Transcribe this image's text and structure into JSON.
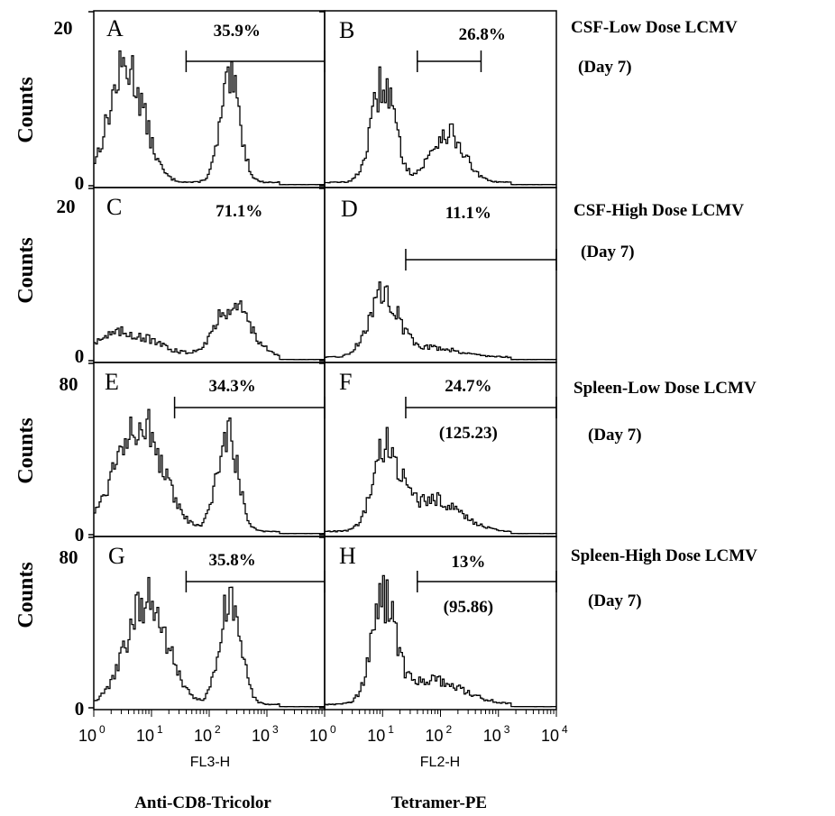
{
  "chart_data": {
    "type": "line",
    "figure": "flow-cytometry-histograms",
    "axis_scale": "log",
    "x_ticks_exponent": [
      "0",
      "1",
      "2",
      "3",
      "4"
    ],
    "x_ticks_base": "10",
    "columns": [
      {
        "axis_label": "FL3-H",
        "bottom_label": "Anti-CD8-Tricolor"
      },
      {
        "axis_label": "FL2-H",
        "bottom_label": "Tetramer-PE"
      }
    ],
    "rows": [
      {
        "y_max": "20",
        "y_min": "0",
        "y_label": "Counts",
        "condition": "CSF-Low Dose LCMV",
        "day": "(Day  7)"
      },
      {
        "y_max": "20",
        "y_min": "0",
        "y_label": "Counts",
        "condition": "CSF-High Dose LCMV",
        "day": "(Day  7)"
      },
      {
        "y_max": "80",
        "y_min": "0",
        "y_label": "Counts",
        "condition": "Spleen-Low Dose LCMV",
        "day": "(Day  7)"
      },
      {
        "y_max": "80",
        "y_min": "0",
        "y_label": "Counts",
        "condition": "Spleen-High Dose LCMV",
        "day": "(Day  7)"
      }
    ],
    "panels": [
      {
        "letter": "A",
        "row": 0,
        "col": 0,
        "ymax": 20,
        "percent": "35.9%",
        "gate": [
          1.6,
          4.0
        ],
        "mfi": "",
        "peaks": [
          [
            0.55,
            0.3,
            14
          ],
          [
            2.35,
            0.17,
            12
          ]
        ]
      },
      {
        "letter": "B",
        "row": 0,
        "col": 1,
        "ymax": 20,
        "percent": "26.8%",
        "gate": [
          1.6,
          2.7
        ],
        "mfi": "",
        "peaks": [
          [
            1.0,
            0.2,
            12
          ],
          [
            2.1,
            0.28,
            6
          ]
        ]
      },
      {
        "letter": "C",
        "row": 1,
        "col": 0,
        "ymax": 20,
        "percent": "71.1%",
        "gate": null,
        "mfi": "",
        "peaks": [
          [
            0.5,
            0.55,
            3
          ],
          [
            2.4,
            0.3,
            6.5
          ]
        ]
      },
      {
        "letter": "D",
        "row": 1,
        "col": 1,
        "ymax": 20,
        "percent": "11.1%",
        "gate": [
          1.4,
          4.0
        ],
        "mfi": "",
        "peaks": [
          [
            1.0,
            0.25,
            7.5
          ],
          [
            1.8,
            0.5,
            1.2
          ]
        ]
      },
      {
        "letter": "E",
        "row": 2,
        "col": 0,
        "ymax": 80,
        "percent": "34.3%",
        "gate": [
          1.4,
          4.0
        ],
        "mfi": "",
        "peaks": [
          [
            0.75,
            0.4,
            55
          ],
          [
            2.3,
            0.18,
            48
          ]
        ]
      },
      {
        "letter": "F",
        "row": 2,
        "col": 1,
        "ymax": 80,
        "percent": "24.7%",
        "gate": [
          1.4,
          4.0
        ],
        "mfi": "(125.23)",
        "peaks": [
          [
            1.05,
            0.22,
            40
          ],
          [
            1.85,
            0.45,
            16
          ]
        ]
      },
      {
        "letter": "G",
        "row": 3,
        "col": 0,
        "ymax": 80,
        "percent": "35.8%",
        "gate": [
          1.6,
          4.0
        ],
        "mfi": "",
        "peaks": [
          [
            0.9,
            0.35,
            52
          ],
          [
            2.35,
            0.18,
            52
          ]
        ]
      },
      {
        "letter": "H",
        "row": 3,
        "col": 1,
        "ymax": 80,
        "percent": "13%",
        "gate": [
          1.6,
          4.0
        ],
        "mfi": "(95.86)",
        "peaks": [
          [
            1.0,
            0.2,
            48
          ],
          [
            1.8,
            0.55,
            12
          ]
        ]
      }
    ]
  }
}
